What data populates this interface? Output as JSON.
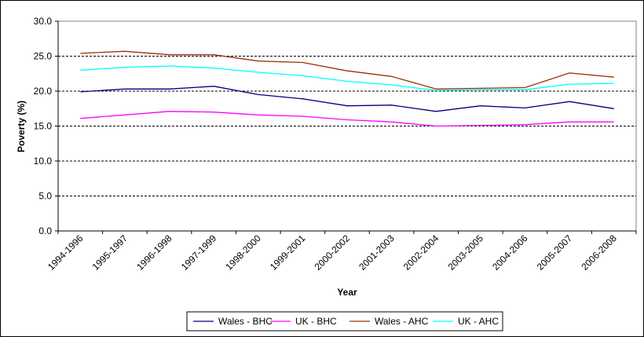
{
  "chart_data": {
    "type": "line",
    "title": "",
    "xlabel": "Year",
    "ylabel": "Poverty (%)",
    "ylim": [
      0,
      30
    ],
    "yticks": [
      "0.0",
      "5.0",
      "10.0",
      "15.0",
      "20.0",
      "25.0",
      "30.0"
    ],
    "grid": "horizontal dashed",
    "legend_position": "bottom",
    "categories": [
      "1994-1996",
      "1995-1997",
      "1996-1998",
      "1997-1999",
      "1998-2000",
      "1999-2001",
      "2000-2002",
      "2001-2003",
      "2002-2004",
      "2003-2005",
      "2004-2006",
      "2005-2007",
      "2006-2008"
    ],
    "series": [
      {
        "name": "Wales - BHC",
        "color": "#000080",
        "values": [
          19.9,
          20.3,
          20.3,
          20.7,
          19.5,
          18.9,
          17.9,
          18.0,
          17.1,
          17.9,
          17.6,
          18.5,
          17.5
        ]
      },
      {
        "name": "UK - BHC",
        "color": "#ff00ff",
        "values": [
          16.1,
          16.6,
          17.1,
          17.0,
          16.6,
          16.4,
          15.9,
          15.6,
          15.0,
          15.1,
          15.2,
          15.6,
          15.6
        ]
      },
      {
        "name": "Wales - AHC",
        "color": "#993300",
        "values": [
          25.4,
          25.7,
          25.2,
          25.2,
          24.3,
          24.1,
          22.9,
          22.1,
          20.3,
          20.4,
          20.5,
          22.6,
          22.0
        ]
      },
      {
        "name": "UK - AHC",
        "color": "#00ffff",
        "values": [
          23.0,
          23.4,
          23.6,
          23.3,
          22.7,
          22.2,
          21.4,
          20.9,
          20.1,
          20.2,
          20.2,
          21.0,
          21.1
        ]
      }
    ]
  }
}
